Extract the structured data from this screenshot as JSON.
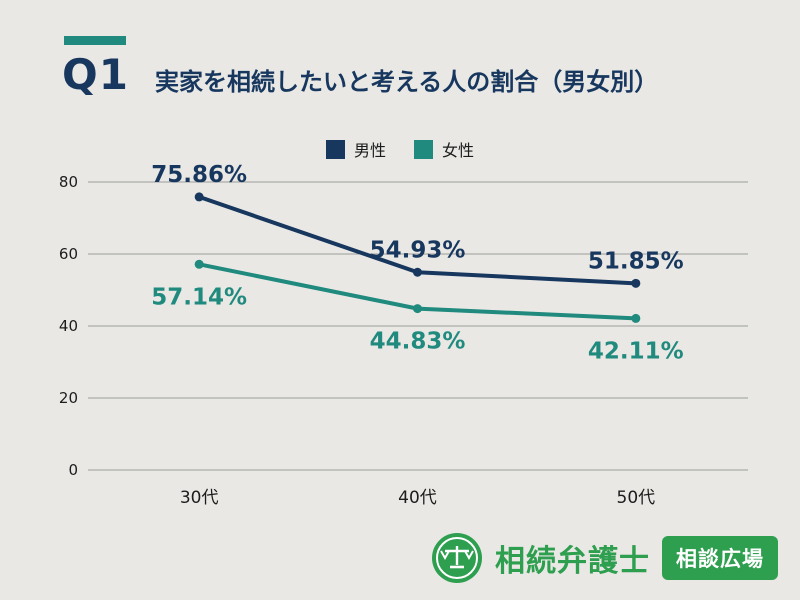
{
  "header": {
    "q_label": "Q1",
    "title": "実家を相続したいと考える人の割合（男女別）"
  },
  "chart_data": {
    "type": "line",
    "categories": [
      "30代",
      "40代",
      "50代"
    ],
    "series": [
      {
        "name": "男性",
        "color": "#17375e",
        "values": [
          75.86,
          54.93,
          51.85
        ],
        "point_labels": [
          "75.86%",
          "54.93%",
          "51.85%"
        ]
      },
      {
        "name": "女性",
        "color": "#1f8a7d",
        "values": [
          57.14,
          44.83,
          42.11
        ],
        "point_labels": [
          "57.14%",
          "44.83%",
          "42.11%"
        ]
      }
    ],
    "ylim": [
      0,
      80
    ],
    "yticks": [
      80,
      60,
      40,
      20,
      0
    ],
    "grid": true,
    "legend_position": "top-center",
    "xlabel": "",
    "ylabel": ""
  },
  "footer": {
    "brand_name": "相続弁護士",
    "badge_label": "相談広場",
    "brand_color": "#2e9e4f"
  },
  "colors": {
    "background": "#e9e8e5",
    "accent_teal": "#1f8a7d",
    "navy": "#17375e",
    "gridline": "#9b9b99"
  }
}
